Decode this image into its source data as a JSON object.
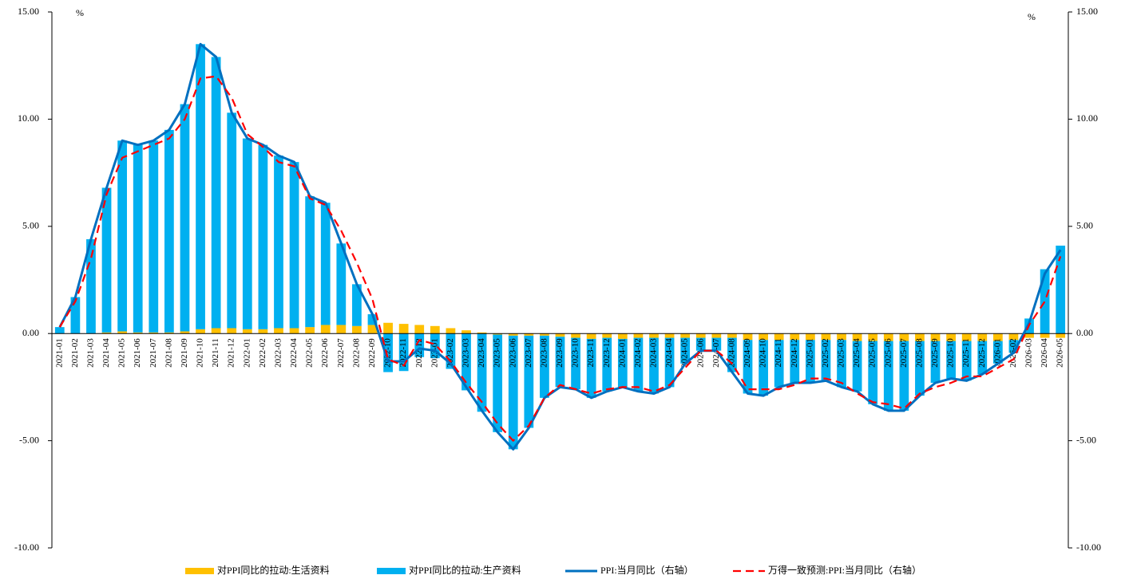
{
  "chart_data": {
    "type": "bar",
    "categories": [
      "2021-01",
      "2021-02",
      "2021-03",
      "2021-04",
      "2021-05",
      "2021-06",
      "2021-07",
      "2021-08",
      "2021-09",
      "2021-10",
      "2021-11",
      "2021-12",
      "2022-01",
      "2022-02",
      "2022-03",
      "2022-04",
      "2022-05",
      "2022-06",
      "2022-07",
      "2022-08",
      "2022-09",
      "2022-10",
      "2022-11",
      "2022-12",
      "2023-01",
      "2023-02",
      "2023-03",
      "2023-04",
      "2023-05",
      "2023-06",
      "2023-07",
      "2023-08",
      "2023-09",
      "2023-10",
      "2023-11",
      "2023-12",
      "2024-01",
      "2024-02",
      "2024-03",
      "2024-04",
      "2024-05",
      "2024-06",
      "2024-07",
      "2024-08",
      "2024-09",
      "2024-10",
      "2024-11",
      "2024-12",
      "2025-01",
      "2025-02",
      "2025-03",
      "2025-04",
      "2025-05",
      "2025-06",
      "2025-07",
      "2025-08",
      "2025-09",
      "2025-10",
      "2025-11",
      "2025-12",
      "2026-01",
      "2026-02",
      "2026-03",
      "2026-04",
      "2026-05"
    ],
    "series": [
      {
        "name": "对PPI同比的拉动:生活资料",
        "kind": "bar",
        "color": "#ffc000",
        "values": [
          0,
          0,
          0,
          0.05,
          0.1,
          0.05,
          0.05,
          0.05,
          0.1,
          0.2,
          0.25,
          0.25,
          0.2,
          0.2,
          0.25,
          0.25,
          0.3,
          0.4,
          0.4,
          0.35,
          0.4,
          0.5,
          0.45,
          0.4,
          0.35,
          0.25,
          0.15,
          0.05,
          -0.05,
          -0.1,
          -0.1,
          -0.1,
          -0.15,
          -0.2,
          -0.25,
          -0.2,
          -0.25,
          -0.2,
          -0.2,
          -0.2,
          -0.2,
          -0.2,
          -0.2,
          -0.2,
          -0.3,
          -0.3,
          -0.3,
          -0.3,
          -0.3,
          -0.3,
          -0.3,
          -0.35,
          -0.35,
          -0.35,
          -0.35,
          -0.35,
          -0.35,
          -0.35,
          -0.35,
          -0.35,
          -0.35,
          -0.3,
          -0.2,
          -0.2,
          -0.2
        ]
      },
      {
        "name": "对PPI同比的拉动:生产资料",
        "kind": "bar",
        "color": "#00b0f0",
        "values": [
          0.3,
          1.7,
          4.4,
          6.75,
          8.9,
          8.75,
          8.95,
          9.45,
          10.6,
          13.3,
          12.65,
          10.05,
          8.9,
          8.6,
          8.05,
          7.75,
          6.1,
          5.7,
          3.8,
          1.95,
          0.5,
          -1.8,
          -1.75,
          -1.1,
          -1.15,
          -1.65,
          -2.65,
          -3.65,
          -4.55,
          -5.3,
          -4.3,
          -2.9,
          -2.35,
          -2.4,
          -2.75,
          -2.5,
          -2.25,
          -2.5,
          -2.6,
          -2.3,
          -1.2,
          -0.6,
          -0.6,
          -1.6,
          -2.5,
          -2.6,
          -2.2,
          -2.0,
          -2.0,
          -1.9,
          -2.2,
          -2.35,
          -2.95,
          -3.25,
          -3.25,
          -2.55,
          -1.95,
          -1.75,
          -1.85,
          -1.55,
          -1.05,
          -0.6,
          0.7,
          3.0,
          4.1
        ]
      },
      {
        "name": "PPI:当月同比（右轴）",
        "kind": "line",
        "axis": "y2",
        "color": "#0070c0",
        "dash": false,
        "values": [
          0.3,
          1.7,
          4.4,
          6.8,
          9.0,
          8.8,
          9.0,
          9.5,
          10.7,
          13.5,
          12.9,
          10.3,
          9.1,
          8.8,
          8.3,
          8.0,
          6.4,
          6.1,
          4.2,
          2.3,
          0.9,
          -1.3,
          -1.3,
          -0.7,
          -0.8,
          -1.4,
          -2.5,
          -3.6,
          -4.6,
          -5.4,
          -4.4,
          -3.0,
          -2.5,
          -2.6,
          -3.0,
          -2.7,
          -2.5,
          -2.7,
          -2.8,
          -2.5,
          -1.4,
          -0.8,
          -0.8,
          -1.8,
          -2.8,
          -2.9,
          -2.5,
          -2.3,
          -2.3,
          -2.2,
          -2.5,
          -2.7,
          -3.3,
          -3.6,
          -3.6,
          -2.9,
          -2.3,
          -2.1,
          -2.2,
          -1.9,
          -1.4,
          -0.9,
          0.5,
          2.8,
          3.9
        ]
      },
      {
        "name": "万得一致预测:PPI:当月同比（右轴）",
        "kind": "line",
        "axis": "y2",
        "color": "#ff0000",
        "dash": true,
        "values": [
          0.3,
          1.5,
          3.5,
          6.5,
          8.2,
          8.5,
          8.8,
          9.1,
          10.0,
          11.9,
          12.0,
          11.0,
          9.3,
          8.7,
          8.0,
          7.8,
          6.3,
          6.0,
          4.8,
          3.3,
          1.6,
          -1.2,
          -1.5,
          -0.3,
          -0.5,
          -1.3,
          -2.3,
          -3.2,
          -4.2,
          -5.0,
          -4.3,
          -3.0,
          -2.4,
          -2.6,
          -2.8,
          -2.6,
          -2.5,
          -2.5,
          -2.7,
          -2.4,
          -1.6,
          -0.8,
          -0.8,
          -1.4,
          -2.6,
          -2.6,
          -2.6,
          -2.4,
          -2.1,
          -2.1,
          -2.3,
          -2.8,
          -3.2,
          -3.3,
          -3.5,
          -2.8,
          -2.5,
          -2.3,
          -2.0,
          -2.0,
          -1.6,
          -1.2,
          0.4,
          1.5,
          3.6
        ]
      }
    ],
    "ylim": [
      -10,
      15
    ],
    "yticks": [
      {
        "value": -10,
        "label": "-10.00"
      },
      {
        "value": -5,
        "label": "-5.00"
      },
      {
        "value": 0,
        "label": "0.00"
      },
      {
        "value": 5,
        "label": "5.00"
      },
      {
        "value": 10,
        "label": "10.00"
      },
      {
        "value": 15,
        "label": "15.00"
      }
    ],
    "y2lim": [
      -10,
      15
    ],
    "y2ticks": [
      {
        "value": -10,
        "label": "-10.00"
      },
      {
        "value": -5,
        "label": "-5.00"
      },
      {
        "value": 0,
        "label": "0.00"
      },
      {
        "value": 5,
        "label": "5.00"
      },
      {
        "value": 10,
        "label": "10.00"
      },
      {
        "value": 15,
        "label": "15.00"
      }
    ],
    "y_unit": "%",
    "y2_unit": "%",
    "legend": "bottom"
  }
}
